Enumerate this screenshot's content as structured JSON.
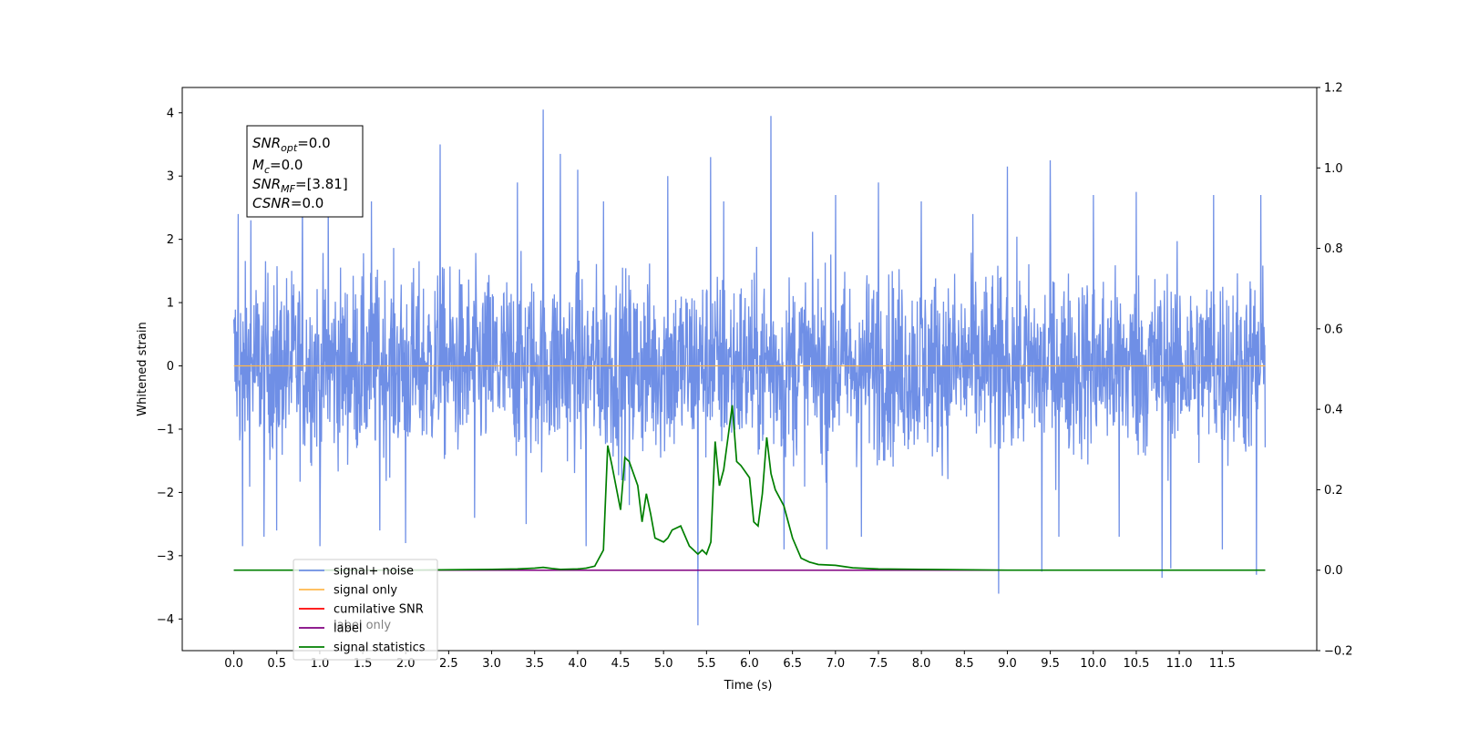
{
  "chart_data": {
    "type": "line",
    "title": "",
    "xlabel": "Time (s)",
    "ylabel": "Whitened strain",
    "xlim": [
      -0.6,
      12.6
    ],
    "ylim": [
      -4.5,
      4.4
    ],
    "y2lim": [
      -0.2,
      1.2
    ],
    "x_ticks": [
      "0.0",
      "0.5",
      "1.0",
      "1.5",
      "2.0",
      "2.5",
      "3.0",
      "3.5",
      "4.0",
      "4.5",
      "5.0",
      "5.5",
      "6.0",
      "6.5",
      "7.0",
      "7.5",
      "8.0",
      "8.5",
      "9.0",
      "9.5",
      "10.0",
      "10.5",
      "11.0",
      "11.5"
    ],
    "y_ticks": [
      "4",
      "3",
      "2",
      "1",
      "0",
      "−1",
      "−2",
      "−3",
      "−4"
    ],
    "y2_ticks": [
      "1.2",
      "1.0",
      "0.8",
      "0.6",
      "0.4",
      "0.2",
      "0.0",
      "−0.2"
    ],
    "grid": false,
    "legend_position": "lower-left",
    "annotation": {
      "snr_opt": {
        "label": "SNR",
        "sub": "opt",
        "value": "=0.0"
      },
      "mc": {
        "label": "M",
        "sub": "c",
        "value": "=0.0"
      },
      "snr_mf": {
        "label": "SNR",
        "sub": "MF",
        "value": "=[3.81]"
      },
      "csnr": {
        "label": "CSNR",
        "value": "=0.0"
      }
    },
    "noise_envelope": {
      "x_range": [
        0.0,
        12.0
      ],
      "typical_upper": 1.8,
      "typical_lower": -1.7,
      "spikes": [
        [
          0.05,
          2.4
        ],
        [
          0.1,
          -2.85
        ],
        [
          0.2,
          2.3
        ],
        [
          0.35,
          -2.7
        ],
        [
          0.5,
          2.4
        ],
        [
          0.5,
          -2.6
        ],
        [
          0.8,
          2.8
        ],
        [
          1.0,
          -2.85
        ],
        [
          1.1,
          2.7
        ],
        [
          1.6,
          2.6
        ],
        [
          1.7,
          -2.6
        ],
        [
          2.0,
          3.0
        ],
        [
          2.0,
          -2.8
        ],
        [
          2.4,
          3.5
        ],
        [
          2.8,
          -2.4
        ],
        [
          3.3,
          2.9
        ],
        [
          3.4,
          -2.5
        ],
        [
          3.6,
          4.05
        ],
        [
          3.8,
          3.35
        ],
        [
          4.1,
          -2.85
        ],
        [
          4.0,
          3.1
        ],
        [
          4.3,
          2.6
        ],
        [
          4.6,
          -2.2
        ],
        [
          5.05,
          3.0
        ],
        [
          5.4,
          -4.1
        ],
        [
          5.55,
          3.3
        ],
        [
          5.7,
          2.6
        ],
        [
          6.25,
          3.95
        ],
        [
          6.4,
          -2.9
        ],
        [
          6.9,
          -2.9
        ],
        [
          7.0,
          2.7
        ],
        [
          7.5,
          2.9
        ],
        [
          7.3,
          -2.7
        ],
        [
          8.0,
          2.6
        ],
        [
          8.6,
          2.4
        ],
        [
          8.9,
          -3.6
        ],
        [
          9.0,
          3.15
        ],
        [
          9.4,
          -3.25
        ],
        [
          9.5,
          3.25
        ],
        [
          9.6,
          -2.7
        ],
        [
          10.0,
          2.7
        ],
        [
          10.3,
          -2.7
        ],
        [
          10.5,
          2.75
        ],
        [
          10.8,
          -3.35
        ],
        [
          10.9,
          -3.2
        ],
        [
          11.4,
          2.7
        ],
        [
          11.5,
          -2.9
        ],
        [
          11.95,
          2.7
        ],
        [
          11.9,
          -3.3
        ]
      ]
    },
    "signal_only": {
      "x": [
        0.0,
        12.0
      ],
      "y": [
        0.0,
        0.0
      ]
    },
    "label_series": {
      "x": [
        0.0,
        12.0
      ],
      "y2": [
        0.0,
        0.0
      ]
    },
    "signal_statistics": {
      "x": [
        0.0,
        1.0,
        2.0,
        3.0,
        3.3,
        3.5,
        3.6,
        3.7,
        3.8,
        4.0,
        4.1,
        4.2,
        4.3,
        4.35,
        4.4,
        4.5,
        4.55,
        4.6,
        4.7,
        4.75,
        4.8,
        4.85,
        4.9,
        5.0,
        5.05,
        5.1,
        5.2,
        5.3,
        5.4,
        5.45,
        5.5,
        5.55,
        5.6,
        5.65,
        5.7,
        5.8,
        5.85,
        5.9,
        6.0,
        6.05,
        6.1,
        6.15,
        6.2,
        6.25,
        6.3,
        6.4,
        6.5,
        6.6,
        6.7,
        6.8,
        7.0,
        7.2,
        7.5,
        8.0,
        9.0,
        12.0
      ],
      "y2": [
        0.0,
        0.0,
        0.0,
        0.002,
        0.003,
        0.005,
        0.007,
        0.004,
        0.002,
        0.003,
        0.005,
        0.01,
        0.05,
        0.31,
        0.26,
        0.15,
        0.28,
        0.27,
        0.21,
        0.12,
        0.19,
        0.14,
        0.08,
        0.07,
        0.08,
        0.1,
        0.11,
        0.06,
        0.04,
        0.05,
        0.04,
        0.07,
        0.32,
        0.21,
        0.25,
        0.41,
        0.27,
        0.26,
        0.23,
        0.12,
        0.11,
        0.19,
        0.33,
        0.24,
        0.2,
        0.16,
        0.08,
        0.03,
        0.02,
        0.014,
        0.012,
        0.006,
        0.003,
        0.002,
        0.0,
        0.0
      ]
    },
    "series": [
      {
        "name": "signal+ noise",
        "color": "#6f8fe6"
      },
      {
        "name": "signal only",
        "color": "#ffb84d"
      },
      {
        "name": "cumilative SNR",
        "color": "#ff0000"
      },
      {
        "name": "label",
        "color": "#800080"
      },
      {
        "name": "signal statistics",
        "color": "#007f00"
      }
    ],
    "hidden_legend_text": "label only"
  }
}
